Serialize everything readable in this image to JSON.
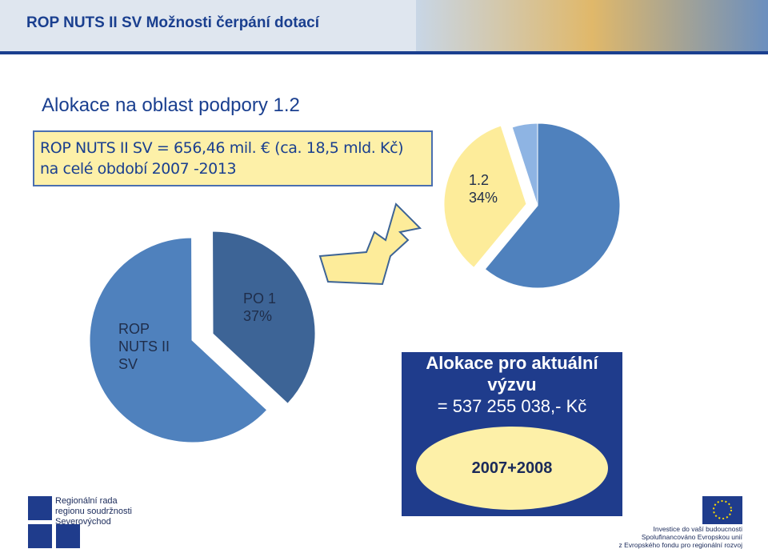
{
  "header": {
    "title": "ROP NUTS II SV Možnosti čerpání dotací"
  },
  "subtitle": "Alokace na oblast podpory 1.2",
  "box": {
    "lines": [
      "ROP NUTS II SV = 656,46 mil. € (ca. 18,5 mld. Kč)",
      "na celé období 2007 -2013"
    ]
  },
  "chart_data": [
    {
      "type": "pie",
      "categories": [
        "ROP NUTS II SV",
        "PO 1"
      ],
      "values": [
        63,
        37
      ],
      "value_labels": [
        null,
        "37%"
      ],
      "colors": [
        "#4f81bd",
        "#3d6496"
      ]
    },
    {
      "type": "pie",
      "categories": [
        null,
        "1.2",
        null
      ],
      "values": [
        61,
        34,
        5
      ],
      "value_labels": [
        null,
        "34%",
        null
      ],
      "colors": [
        "#4f81bd",
        "#fdec9a",
        "#8eb4e3"
      ]
    }
  ],
  "callout": {
    "lines": [
      "Alokace pro aktuální",
      "výzvu",
      "= 537 255 038,- Kč"
    ],
    "period": "2007+2008"
  },
  "logos": {
    "left": [
      "Regionální rada",
      "regionu soudržnosti",
      "Severovýchod"
    ],
    "right": [
      "Investice do vaší budoucnosti",
      "Spolufinancováno Evropskou unií",
      "z Evropského fondu pro regionální rozvoj"
    ]
  }
}
